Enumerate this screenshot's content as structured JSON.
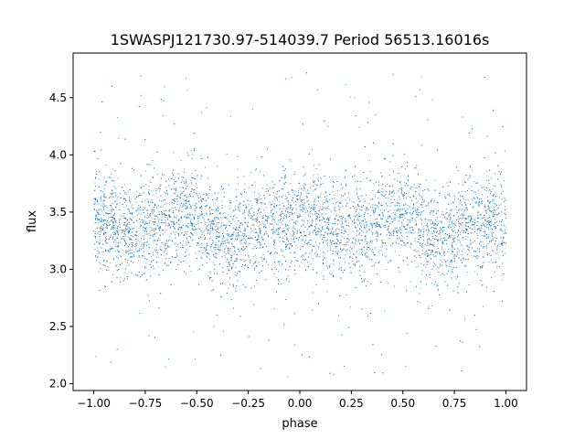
{
  "chart_data": {
    "type": "scatter",
    "title": "1SWASPJ121730.97-514039.7 Period 56513.16016s",
    "xlabel": "phase",
    "ylabel": "flux",
    "xlim": [
      -1.1,
      1.1
    ],
    "ylim": [
      1.94,
      4.89
    ],
    "xticks": [
      -1.0,
      -0.75,
      -0.5,
      -0.25,
      0.0,
      0.25,
      0.5,
      0.75,
      1.0
    ],
    "xtick_labels": [
      "−1.00",
      "−0.75",
      "−0.50",
      "−0.25",
      "0.00",
      "0.25",
      "0.50",
      "0.75",
      "1.00"
    ],
    "yticks": [
      2.0,
      2.5,
      3.0,
      3.5,
      4.0,
      4.5
    ],
    "ytick_labels": [
      "2.0",
      "2.5",
      "3.0",
      "3.5",
      "4.0",
      "4.5"
    ],
    "grid": false,
    "legend": "none",
    "marker_color": "#1f77b4",
    "trend": {
      "phase": [
        -1.0,
        -0.8,
        -0.55,
        -0.33,
        -0.15,
        0.0,
        0.2,
        0.45,
        0.67,
        0.85,
        1.0
      ],
      "flux": [
        3.42,
        3.35,
        3.48,
        3.25,
        3.4,
        3.42,
        3.35,
        3.48,
        3.25,
        3.4,
        3.42
      ]
    },
    "scatter_sd": 0.22,
    "outlier_range": [
      2.05,
      4.75
    ]
  }
}
